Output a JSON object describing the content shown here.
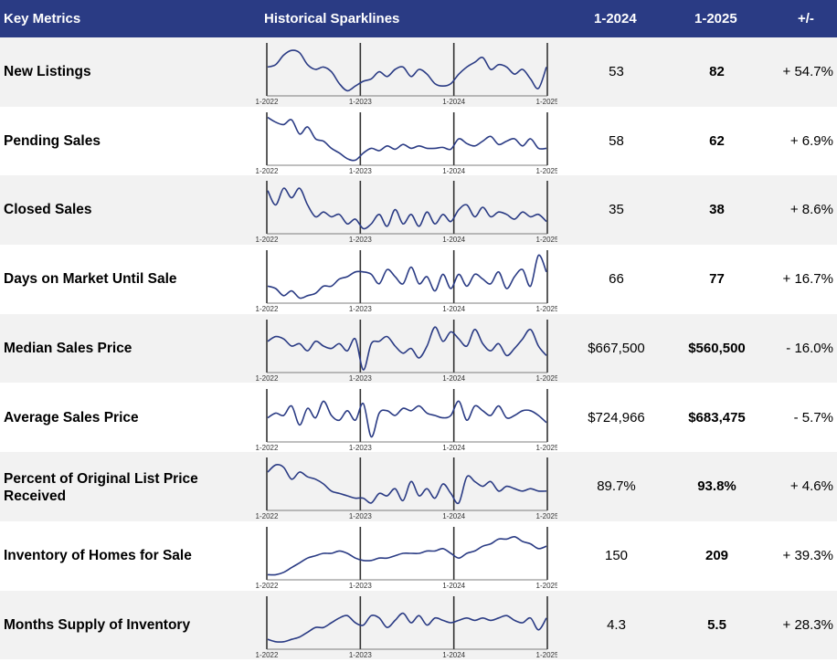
{
  "header": {
    "metric": "Key Metrics",
    "sparklines": "Historical Sparklines",
    "col_2024": "1-2024",
    "col_2025": "1-2025",
    "change": "+/-"
  },
  "axis_labels": [
    "1-2022",
    "1-2023",
    "1-2024",
    "1-2025"
  ],
  "colors": {
    "header_bg": "#2a3b84",
    "line": "#2a3b84",
    "alt_row": "#f2f2f2"
  },
  "rows": [
    {
      "metric": "New Listings",
      "v2024": "53",
      "v2025": "82",
      "change": "+ 54.7%"
    },
    {
      "metric": "Pending Sales",
      "v2024": "58",
      "v2025": "62",
      "change": "+ 6.9%"
    },
    {
      "metric": "Closed Sales",
      "v2024": "35",
      "v2025": "38",
      "change": "+ 8.6%"
    },
    {
      "metric": "Days on Market Until Sale",
      "v2024": "66",
      "v2025": "77",
      "change": "+ 16.7%"
    },
    {
      "metric": "Median Sales Price",
      "v2024": "$667,500",
      "v2025": "$560,500",
      "change": "- 16.0%"
    },
    {
      "metric": "Average Sales Price",
      "v2024": "$724,966",
      "v2025": "$683,475",
      "change": "- 5.7%"
    },
    {
      "metric": "Percent of Original List Price Received",
      "v2024": "89.7%",
      "v2025": "93.8%",
      "change": "+ 4.6%"
    },
    {
      "metric": "Inventory of Homes for Sale",
      "v2024": "150",
      "v2025": "209",
      "change": "+ 39.3%"
    },
    {
      "metric": "Months Supply of Inventory",
      "v2024": "4.3",
      "v2025": "5.5",
      "change": "+ 28.3%"
    }
  ],
  "chart_data": {
    "type": "line",
    "x_ticks": [
      "1-2022",
      "1-2023",
      "1-2024",
      "1-2025"
    ],
    "series": [
      {
        "name": "New Listings",
        "values": [
          0.55,
          0.6,
          0.8,
          0.9,
          0.85,
          0.6,
          0.5,
          0.55,
          0.45,
          0.2,
          0.05,
          0.15,
          0.25,
          0.3,
          0.45,
          0.35,
          0.5,
          0.55,
          0.35,
          0.5,
          0.4,
          0.2,
          0.15,
          0.2,
          0.4,
          0.55,
          0.65,
          0.75,
          0.5,
          0.6,
          0.55,
          0.4,
          0.5,
          0.3,
          0.1,
          0.55
        ]
      },
      {
        "name": "Pending Sales",
        "values": [
          0.95,
          0.85,
          0.8,
          0.9,
          0.6,
          0.75,
          0.5,
          0.45,
          0.3,
          0.2,
          0.08,
          0.05,
          0.2,
          0.3,
          0.25,
          0.35,
          0.28,
          0.38,
          0.3,
          0.35,
          0.3,
          0.3,
          0.32,
          0.28,
          0.5,
          0.4,
          0.35,
          0.45,
          0.55,
          0.38,
          0.45,
          0.5,
          0.35,
          0.5,
          0.3,
          0.3
        ]
      },
      {
        "name": "Closed Sales",
        "values": [
          0.85,
          0.55,
          0.9,
          0.7,
          0.9,
          0.55,
          0.3,
          0.4,
          0.3,
          0.35,
          0.15,
          0.25,
          0.05,
          0.15,
          0.35,
          0.1,
          0.45,
          0.15,
          0.35,
          0.1,
          0.4,
          0.15,
          0.35,
          0.2,
          0.45,
          0.55,
          0.3,
          0.5,
          0.3,
          0.4,
          0.35,
          0.25,
          0.4,
          0.3,
          0.35,
          0.2
        ]
      },
      {
        "name": "Days on Market Until Sale",
        "values": [
          0.3,
          0.25,
          0.1,
          0.2,
          0.05,
          0.1,
          0.15,
          0.3,
          0.3,
          0.45,
          0.5,
          0.6,
          0.6,
          0.55,
          0.35,
          0.65,
          0.5,
          0.35,
          0.7,
          0.35,
          0.5,
          0.2,
          0.55,
          0.25,
          0.55,
          0.3,
          0.55,
          0.45,
          0.35,
          0.6,
          0.25,
          0.5,
          0.65,
          0.3,
          0.95,
          0.6
        ]
      },
      {
        "name": "Median Sales Price",
        "values": [
          0.6,
          0.7,
          0.65,
          0.5,
          0.55,
          0.4,
          0.6,
          0.5,
          0.45,
          0.55,
          0.4,
          0.65,
          0.0,
          0.55,
          0.6,
          0.7,
          0.5,
          0.35,
          0.45,
          0.25,
          0.5,
          0.9,
          0.6,
          0.8,
          0.65,
          0.5,
          0.85,
          0.55,
          0.4,
          0.55,
          0.3,
          0.45,
          0.65,
          0.85,
          0.5,
          0.3
        ]
      },
      {
        "name": "Average Sales Price",
        "values": [
          0.45,
          0.55,
          0.5,
          0.7,
          0.3,
          0.65,
          0.45,
          0.8,
          0.5,
          0.4,
          0.6,
          0.4,
          0.75,
          0.05,
          0.55,
          0.6,
          0.5,
          0.65,
          0.6,
          0.7,
          0.55,
          0.5,
          0.45,
          0.5,
          0.8,
          0.4,
          0.7,
          0.6,
          0.5,
          0.7,
          0.45,
          0.5,
          0.6,
          0.6,
          0.5,
          0.35
        ]
      },
      {
        "name": "Percent of Original List Price Received",
        "values": [
          0.75,
          0.9,
          0.85,
          0.6,
          0.75,
          0.65,
          0.6,
          0.5,
          0.35,
          0.3,
          0.25,
          0.2,
          0.2,
          0.1,
          0.3,
          0.25,
          0.4,
          0.15,
          0.55,
          0.25,
          0.4,
          0.2,
          0.5,
          0.3,
          0.1,
          0.65,
          0.55,
          0.45,
          0.55,
          0.35,
          0.45,
          0.4,
          0.35,
          0.4,
          0.35,
          0.35
        ]
      },
      {
        "name": "Inventory of Homes for Sale",
        "values": [
          0.05,
          0.05,
          0.1,
          0.2,
          0.3,
          0.4,
          0.45,
          0.5,
          0.5,
          0.55,
          0.5,
          0.4,
          0.35,
          0.35,
          0.4,
          0.4,
          0.45,
          0.5,
          0.5,
          0.5,
          0.55,
          0.55,
          0.6,
          0.5,
          0.4,
          0.5,
          0.55,
          0.65,
          0.7,
          0.8,
          0.8,
          0.85,
          0.75,
          0.7,
          0.6,
          0.65
        ]
      },
      {
        "name": "Months Supply of Inventory",
        "values": [
          0.15,
          0.1,
          0.1,
          0.15,
          0.2,
          0.3,
          0.4,
          0.4,
          0.5,
          0.6,
          0.65,
          0.5,
          0.45,
          0.65,
          0.6,
          0.4,
          0.55,
          0.7,
          0.5,
          0.65,
          0.45,
          0.6,
          0.55,
          0.5,
          0.55,
          0.6,
          0.55,
          0.6,
          0.55,
          0.6,
          0.65,
          0.55,
          0.5,
          0.6,
          0.35,
          0.6
        ]
      }
    ]
  }
}
